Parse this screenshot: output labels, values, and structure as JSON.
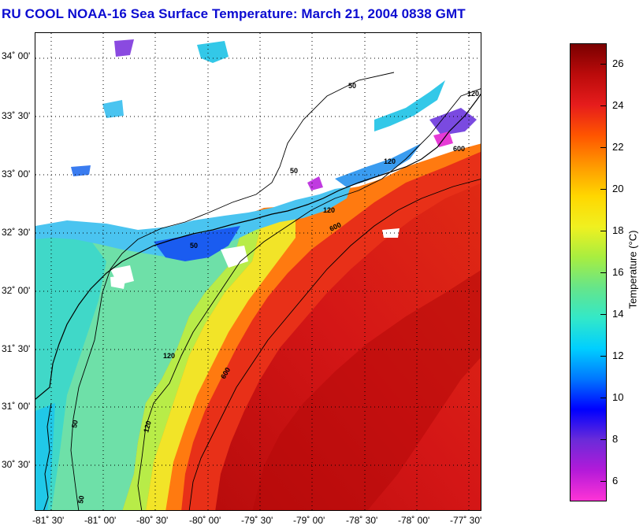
{
  "title": "RU COOL  NOAA-16  Sea Surface Temperature:  March 21, 2004 0838 GMT",
  "lat_labels": [
    "34˚ 00'",
    "33˚ 30'",
    "33˚ 00'",
    "32˚ 30'",
    "32˚ 00'",
    "31˚ 30'",
    "31˚ 00'",
    "30˚ 30'"
  ],
  "lon_labels": [
    "-81˚ 30'",
    "-81˚ 00'",
    "-80˚ 30'",
    "-80˚ 00'",
    "-79˚ 30'",
    "-79˚ 00'",
    "-78˚ 30'",
    "-78˚ 00'",
    "-77˚ 30'"
  ],
  "colorbar": {
    "title": "Temperature (°C)",
    "ticks": [
      "26",
      "24",
      "22",
      "20",
      "18",
      "16",
      "14",
      "12",
      "10",
      "8",
      "6"
    ],
    "range": [
      5,
      27
    ],
    "colors": [
      "#ff33d6",
      "#b31ad9",
      "#6a2bd9",
      "#0000ff",
      "#0077ff",
      "#00cfff",
      "#33e8c8",
      "#66e58a",
      "#a8ee40",
      "#f0f020",
      "#ffd700",
      "#ff9900",
      "#ff5500",
      "#e61c1c",
      "#bb0b0b",
      "#7a0000"
    ]
  },
  "contour_labels": [
    "50",
    "50",
    "50",
    "50",
    "50",
    "120",
    "120",
    "120",
    "120",
    "120",
    "600",
    "600",
    "600"
  ],
  "land_color": "#ffffff",
  "grid": "dotted"
}
